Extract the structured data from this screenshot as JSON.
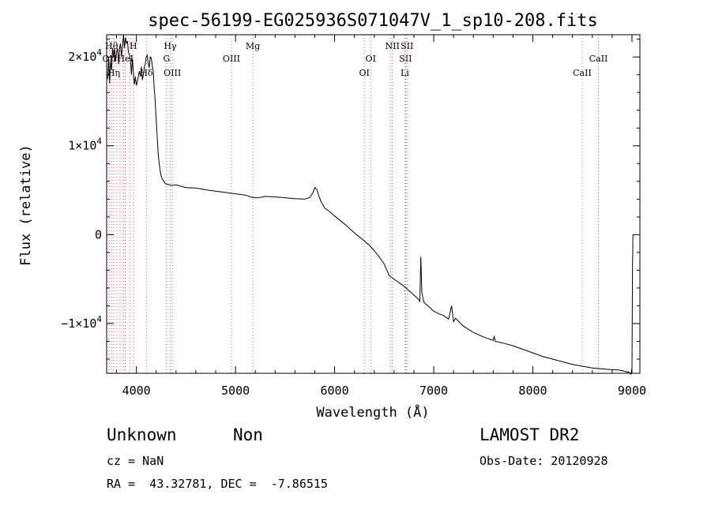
{
  "chart_data": {
    "type": "line",
    "title": "spec-56199-EG025936S071047V_1_sp10-208.fits",
    "xlabel": "Wavelength (Å)",
    "ylabel": "Flux (relative)",
    "xlim": [
      3700,
      9080
    ],
    "ylim": [
      -15600,
      22500
    ],
    "x_ticks": [
      4000,
      5000,
      6000,
      7000,
      8000,
      9000
    ],
    "y_ticks": [
      {
        "value": 20000,
        "label": "2×10",
        "exp": "4"
      },
      {
        "value": 10000,
        "label": "1×10",
        "exp": "4"
      },
      {
        "value": 0,
        "label": "0",
        "exp": ""
      },
      {
        "value": -10000,
        "label": "−1×10",
        "exp": "4"
      }
    ],
    "series": [
      {
        "x": [
          3710,
          3720,
          3730,
          3740,
          3750,
          3760,
          3770,
          3780,
          3790,
          3800,
          3810,
          3820,
          3830,
          3840,
          3850,
          3860,
          3870,
          3880,
          3890,
          3900,
          3910,
          3920,
          3930,
          3940,
          3950,
          3960,
          3970,
          3980,
          3990,
          4000,
          4010,
          4020,
          4030,
          4040,
          4050,
          4060,
          4070,
          4080,
          4090,
          4100,
          4110,
          4120,
          4130,
          4140,
          4150,
          4160,
          4170,
          4180,
          4190,
          4200,
          4210,
          4220,
          4230,
          4240,
          4250,
          4260,
          4270,
          4280,
          4290,
          4300,
          4320,
          4350,
          4400,
          4450,
          4500,
          4600,
          4700,
          4800,
          4900,
          5000,
          5100,
          5150,
          5200,
          5250,
          5300,
          5400,
          5500,
          5600,
          5700,
          5750,
          5780,
          5800,
          5820,
          5840,
          5860,
          5880,
          5900,
          5950,
          6000,
          6100,
          6200,
          6300,
          6350,
          6400,
          6450,
          6500,
          6550,
          6600,
          6700,
          6750,
          6800,
          6840,
          6860,
          6870,
          6880,
          6900,
          6950,
          7000,
          7050,
          7100,
          7150,
          7180,
          7200,
          7220,
          7300,
          7400,
          7500,
          7600,
          7610,
          7620,
          7700,
          7800,
          7900,
          8000,
          8100,
          8200,
          8300,
          8400,
          8500,
          8600,
          8700,
          8800,
          8850,
          8900,
          8930,
          8950,
          8960,
          8980,
          8990,
          9000,
          9005,
          9010
        ],
        "y": [
          17500,
          20000,
          17000,
          19500,
          18500,
          21000,
          20000,
          21000,
          19500,
          20500,
          21000,
          19200,
          21000,
          21500,
          20000,
          21200,
          22500,
          21000,
          22200,
          21500,
          21800,
          20500,
          20200,
          19800,
          18000,
          19800,
          18200,
          16900,
          17800,
          16800,
          17200,
          17800,
          18400,
          17800,
          18900,
          17400,
          18000,
          18800,
          19200,
          20000,
          20200,
          19200,
          18800,
          20000,
          19900,
          19000,
          18400,
          16500,
          15000,
          13000,
          11000,
          9200,
          8000,
          7200,
          6600,
          6300,
          6100,
          5950,
          5800,
          5700,
          5650,
          5550,
          5600,
          5450,
          5300,
          5250,
          5050,
          4900,
          4750,
          4600,
          4450,
          4250,
          4150,
          4200,
          4300,
          4250,
          4150,
          4050,
          4000,
          4200,
          4700,
          5300,
          5100,
          4400,
          3800,
          3400,
          3000,
          2600,
          2100,
          1200,
          200,
          -700,
          -1200,
          -1800,
          -2500,
          -3300,
          -4600,
          -5000,
          -5800,
          -6300,
          -6800,
          -7200,
          -7500,
          -2500,
          -6500,
          -7600,
          -8100,
          -8600,
          -8900,
          -9100,
          -9500,
          -8000,
          -9800,
          -9400,
          -10300,
          -11000,
          -11500,
          -11900,
          -11400,
          -12000,
          -12200,
          -12500,
          -12900,
          -13300,
          -13700,
          -14000,
          -14300,
          -14600,
          -14800,
          -15000,
          -15100,
          -15200,
          -15200,
          -15300,
          -15400,
          -15500,
          -15400,
          -15600,
          -15700,
          -15000,
          -4000,
          0
        ]
      }
    ],
    "lines": [
      {
        "x": 3727,
        "label": "OII",
        "row": 1
      },
      {
        "x": 3750,
        "label": "Hθ",
        "row": 0
      },
      {
        "x": 3771,
        "label": "Hη",
        "row": 2
      },
      {
        "x": 3798,
        "label": "",
        "row": -1
      },
      {
        "x": 3835,
        "label": "",
        "row": -1
      },
      {
        "x": 3869,
        "label": "",
        "row": -1
      },
      {
        "x": 3889,
        "label": "HeI",
        "row": 1
      },
      {
        "x": 3934,
        "label": "K",
        "row": -1
      },
      {
        "x": 3969,
        "label": "H",
        "row": 0
      },
      {
        "x": 4102,
        "label": "Hδ",
        "row": 2
      },
      {
        "x": 4304,
        "label": "G",
        "row": 1
      },
      {
        "x": 4341,
        "label": "Hγ",
        "row": 0
      },
      {
        "x": 4363,
        "label": "OIII",
        "row": 2
      },
      {
        "x": 4959,
        "label": "OIII",
        "row": 1
      },
      {
        "x": 5175,
        "label": "Mg",
        "row": 0
      },
      {
        "x": 6300,
        "label": "OI",
        "row": 2
      },
      {
        "x": 6364,
        "label": "OI",
        "row": 1
      },
      {
        "x": 6563,
        "label": "",
        "row": -1
      },
      {
        "x": 6583,
        "label": "NII",
        "row": 0
      },
      {
        "x": 6708,
        "label": "Li",
        "row": 2
      },
      {
        "x": 6716,
        "label": "SII",
        "row": 1
      },
      {
        "x": 6731,
        "label": "SII",
        "row": 0
      },
      {
        "x": 8498,
        "label": "CaII",
        "row": 2
      },
      {
        "x": 8662,
        "label": "CaII",
        "row": 1
      }
    ]
  },
  "info": {
    "object_class": "Unknown",
    "subclass": "Non",
    "survey": "LAMOST DR2",
    "cz": "cz = NaN",
    "obs_date": "Obs-Date: 20120928",
    "coords": "RA =  43.32781, DEC =  -7.86515"
  }
}
